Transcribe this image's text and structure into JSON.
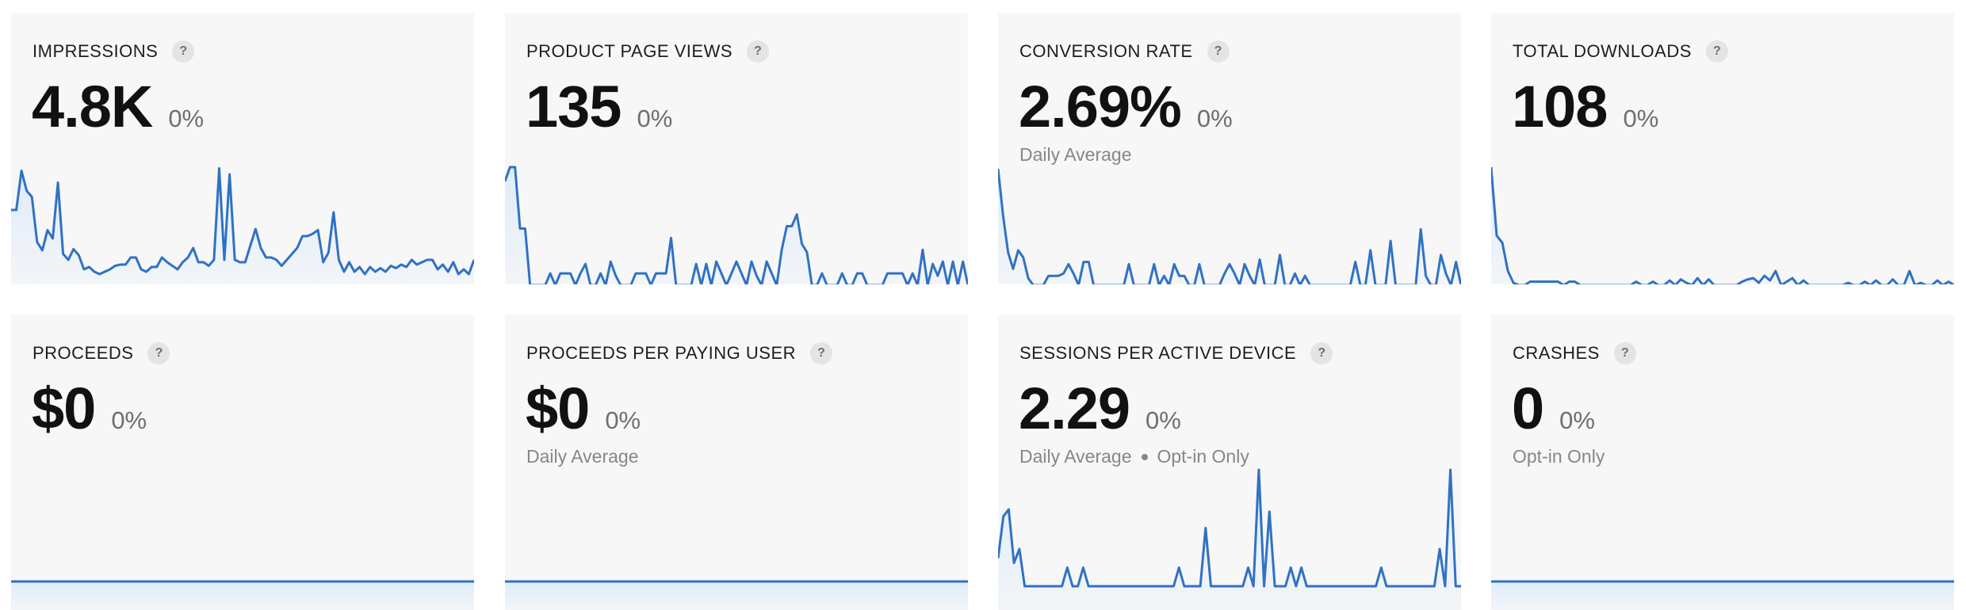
{
  "colors": {
    "card_bg": "#f7f7f7",
    "line": "#2f72c4",
    "fill": "#dceafa",
    "title": "#1d1d1f",
    "value": "#111111",
    "muted": "#86868b"
  },
  "help_icon_glyph": "?",
  "metrics": [
    {
      "id": "impressions",
      "title": "IMPRESSIONS",
      "value": "4.8K",
      "change": "0%",
      "subtitle": [],
      "series": [
        0.62,
        0.62,
        0.95,
        0.78,
        0.73,
        0.35,
        0.28,
        0.45,
        0.38,
        0.85,
        0.25,
        0.2,
        0.29,
        0.24,
        0.12,
        0.14,
        0.1,
        0.08,
        0.1,
        0.12,
        0.15,
        0.16,
        0.16,
        0.22,
        0.22,
        0.12,
        0.1,
        0.14,
        0.14,
        0.22,
        0.18,
        0.15,
        0.12,
        0.18,
        0.22,
        0.3,
        0.18,
        0.18,
        0.15,
        0.2,
        0.97,
        0.2,
        0.92,
        0.2,
        0.18,
        0.18,
        0.32,
        0.46,
        0.3,
        0.22,
        0.22,
        0.2,
        0.15,
        0.2,
        0.25,
        0.3,
        0.4,
        0.4,
        0.42,
        0.45,
        0.18,
        0.26,
        0.6,
        0.2,
        0.1,
        0.18,
        0.1,
        0.14,
        0.08,
        0.14,
        0.1,
        0.13,
        0.1,
        0.15,
        0.13,
        0.16,
        0.14,
        0.2,
        0.16,
        0.18,
        0.2,
        0.2,
        0.12,
        0.16,
        0.1,
        0.18,
        0.08,
        0.12,
        0.08,
        0.2
      ]
    },
    {
      "id": "product_page_views",
      "title": "PRODUCT PAGE VIEWS",
      "value": "135",
      "change": "0%",
      "subtitle": [],
      "series": [
        0.88,
        1.0,
        1.0,
        0.48,
        0.48,
        0.0,
        0.0,
        0.0,
        0.0,
        0.1,
        0.0,
        0.1,
        0.1,
        0.1,
        0.0,
        0.1,
        0.18,
        0.0,
        0.0,
        0.1,
        0.0,
        0.2,
        0.08,
        0.0,
        0.0,
        0.0,
        0.1,
        0.1,
        0.1,
        0.0,
        0.1,
        0.1,
        0.1,
        0.4,
        0.0,
        0.0,
        0.0,
        0.0,
        0.18,
        0.0,
        0.18,
        0.0,
        0.2,
        0.1,
        0.0,
        0.1,
        0.2,
        0.1,
        0.0,
        0.2,
        0.08,
        0.0,
        0.2,
        0.1,
        0.0,
        0.3,
        0.5,
        0.5,
        0.6,
        0.35,
        0.28,
        0.0,
        0.0,
        0.1,
        0.0,
        0.0,
        0.0,
        0.1,
        0.0,
        0.0,
        0.1,
        0.1,
        0.0,
        0.0,
        0.0,
        0.0,
        0.1,
        0.1,
        0.1,
        0.1,
        0.0,
        0.1,
        0.0,
        0.3,
        0.0,
        0.18,
        0.08,
        0.2,
        0.0,
        0.2,
        0.0,
        0.2,
        0.0
      ]
    },
    {
      "id": "conversion_rate",
      "title": "CONVERSION RATE",
      "value": "2.69%",
      "change": "0%",
      "subtitle": [
        "Daily Average"
      ],
      "series": [
        1.0,
        0.6,
        0.28,
        0.14,
        0.3,
        0.24,
        0.06,
        0.0,
        0.0,
        0.0,
        0.08,
        0.08,
        0.08,
        0.1,
        0.18,
        0.1,
        0.0,
        0.2,
        0.2,
        0.0,
        0.0,
        0.0,
        0.0,
        0.0,
        0.0,
        0.0,
        0.18,
        0.0,
        0.0,
        0.0,
        0.0,
        0.18,
        0.0,
        0.08,
        0.0,
        0.18,
        0.08,
        0.08,
        0.0,
        0.0,
        0.18,
        0.0,
        0.0,
        0.0,
        0.0,
        0.1,
        0.18,
        0.1,
        0.0,
        0.18,
        0.08,
        0.0,
        0.22,
        0.0,
        0.0,
        0.0,
        0.26,
        0.0,
        0.0,
        0.1,
        0.0,
        0.08,
        0.0,
        0.0,
        0.0,
        0.0,
        0.0,
        0.0,
        0.0,
        0.0,
        0.0,
        0.2,
        0.0,
        0.0,
        0.3,
        0.0,
        0.0,
        0.0,
        0.38,
        0.0,
        0.0,
        0.0,
        0.0,
        0.0,
        0.48,
        0.08,
        0.0,
        0.0,
        0.26,
        0.1,
        0.0,
        0.2,
        0.0
      ]
    },
    {
      "id": "total_downloads",
      "title": "TOTAL DOWNLOADS",
      "value": "108",
      "change": "0%",
      "subtitle": [],
      "series": [
        1.0,
        0.42,
        0.36,
        0.12,
        0.02,
        0.0,
        0.0,
        0.03,
        0.03,
        0.03,
        0.03,
        0.03,
        0.03,
        0.0,
        0.03,
        0.03,
        0.0,
        0.0,
        0.0,
        0.0,
        0.0,
        0.0,
        0.0,
        0.0,
        0.0,
        0.0,
        0.03,
        0.0,
        0.0,
        0.03,
        0.0,
        0.0,
        0.04,
        0.0,
        0.05,
        0.02,
        0.0,
        0.06,
        0.0,
        0.05,
        0.0,
        0.0,
        0.0,
        0.0,
        0.0,
        0.03,
        0.05,
        0.06,
        0.02,
        0.08,
        0.04,
        0.12,
        0.0,
        0.03,
        0.06,
        0.0,
        0.04,
        0.0,
        0.0,
        0.0,
        0.0,
        0.0,
        0.0,
        0.0,
        0.02,
        0.0,
        0.0,
        0.03,
        0.0,
        0.04,
        0.0,
        0.0,
        0.05,
        0.0,
        0.0,
        0.12,
        0.0,
        0.02,
        0.0,
        0.0,
        0.04,
        0.0,
        0.03,
        0.0
      ]
    },
    {
      "id": "proceeds",
      "title": "PROCEEDS",
      "value": "$0",
      "change": "0%",
      "subtitle": [],
      "series": [
        0,
        0
      ]
    },
    {
      "id": "proceeds_per_paying_user",
      "title": "PROCEEDS PER PAYING USER",
      "value": "$0",
      "change": "0%",
      "subtitle": [
        "Daily Average"
      ],
      "series": [
        0,
        0
      ]
    },
    {
      "id": "sessions_per_active_device",
      "title": "SESSIONS PER ACTIVE DEVICE",
      "value": "2.29",
      "change": "0%",
      "subtitle": [
        "Daily Average",
        "Opt-in Only"
      ],
      "series": [
        0.24,
        0.6,
        0.66,
        0.2,
        0.32,
        0.0,
        0.0,
        0.0,
        0.0,
        0.0,
        0.0,
        0.0,
        0.0,
        0.16,
        0.0,
        0.0,
        0.16,
        0.0,
        0.0,
        0.0,
        0.0,
        0.0,
        0.0,
        0.0,
        0.0,
        0.0,
        0.0,
        0.0,
        0.0,
        0.0,
        0.0,
        0.0,
        0.0,
        0.0,
        0.16,
        0.0,
        0.0,
        0.0,
        0.0,
        0.5,
        0.0,
        0.0,
        0.0,
        0.0,
        0.0,
        0.0,
        0.0,
        0.16,
        0.0,
        1.0,
        0.0,
        0.64,
        0.0,
        0.0,
        0.0,
        0.16,
        0.0,
        0.16,
        0.0,
        0.0,
        0.0,
        0.0,
        0.0,
        0.0,
        0.0,
        0.0,
        0.0,
        0.0,
        0.0,
        0.0,
        0.0,
        0.0,
        0.16,
        0.0,
        0.0,
        0.0,
        0.0,
        0.0,
        0.0,
        0.0,
        0.0,
        0.0,
        0.0,
        0.32,
        0.0,
        1.0,
        0.0,
        0.0
      ]
    },
    {
      "id": "crashes",
      "title": "CRASHES",
      "value": "0",
      "change": "0%",
      "subtitle": [
        "Opt-in Only"
      ],
      "series": [
        0,
        0
      ]
    }
  ]
}
